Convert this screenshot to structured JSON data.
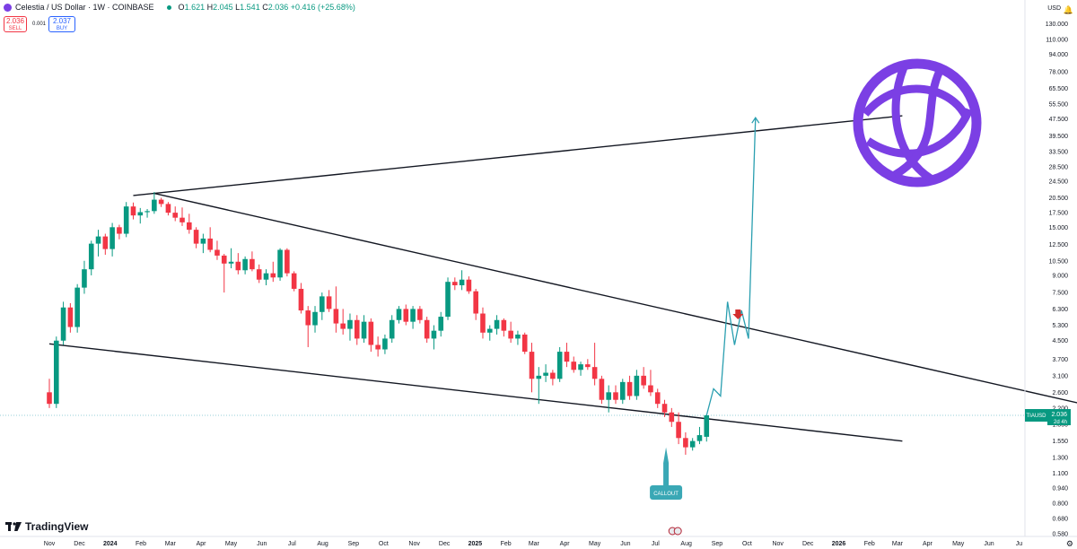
{
  "header": {
    "symbol_name": "Celestia / US Dollar · 1W · COINBASE",
    "ohlc_o_label": "O",
    "ohlc_o": "1.621",
    "ohlc_h_label": "H",
    "ohlc_h": "2.045",
    "ohlc_l_label": "L",
    "ohlc_l": "1.541",
    "ohlc_c_label": "C",
    "ohlc_c": "2.036",
    "change": "+0.416 (+25.68%)"
  },
  "trade": {
    "sell_price": "2.036",
    "sell_label": "SELL",
    "spread": "0.001",
    "buy_price": "2.037",
    "buy_label": "BUY"
  },
  "axis_currency": "USD",
  "brand": "TradingView",
  "price_tag": {
    "ticker": "TIAUSD",
    "price": "2.036",
    "countdown": "2d 4h"
  },
  "colors": {
    "up": "#089981",
    "down": "#f23645",
    "projection": "#2a9fb0",
    "trendline": "#131722",
    "logo": "#7b3fe4",
    "callout": "#3aa8b5"
  },
  "icons": [
    "celestia-logo-icon",
    "down-arrow-marker-icon",
    "bell-icon",
    "gear-icon",
    "us-flag-event-icon"
  ],
  "chart_data": {
    "type": "candlestick",
    "scale": "log",
    "y_ticks": [
      "130.000",
      "110.000",
      "94.000",
      "78.000",
      "65.500",
      "55.500",
      "47.500",
      "39.500",
      "33.500",
      "28.500",
      "24.500",
      "20.500",
      "17.500",
      "15.000",
      "12.500",
      "10.500",
      "9.000",
      "7.500",
      "6.300",
      "5.300",
      "4.500",
      "3.700",
      "3.100",
      "2.600",
      "2.200",
      "1.850",
      "1.550",
      "1.300",
      "1.100",
      "0.940",
      "0.800",
      "0.680",
      "0.580"
    ],
    "y_tick_values": [
      130,
      110,
      94,
      78,
      65.5,
      55.5,
      47.5,
      39.5,
      33.5,
      28.5,
      24.5,
      20.5,
      17.5,
      15,
      12.5,
      10.5,
      9,
      7.5,
      6.3,
      5.3,
      4.5,
      3.7,
      3.1,
      2.6,
      2.2,
      1.85,
      1.55,
      1.3,
      1.1,
      0.94,
      0.8,
      0.68,
      0.58
    ],
    "x_ticks": [
      "Nov",
      "Dec",
      "2024",
      "Feb",
      "Mar",
      "Apr",
      "May",
      "Jun",
      "Jul",
      "Aug",
      "Sep",
      "Oct",
      "Nov",
      "Dec",
      "2025",
      "Feb",
      "Mar",
      "Apr",
      "May",
      "Jun",
      "Jul",
      "Aug",
      "Sep",
      "Oct",
      "Nov",
      "Dec",
      "2026",
      "Feb",
      "Mar",
      "Apr",
      "May",
      "Jun",
      "Ju"
    ],
    "x_tick_weeks": [
      0,
      4.3,
      8.7,
      13.1,
      17.3,
      21.7,
      26,
      30.4,
      34.7,
      39.1,
      43.5,
      47.8,
      52.2,
      56.5,
      60.9,
      65.3,
      69.3,
      73.7,
      78,
      82.4,
      86.7,
      91.1,
      95.5,
      99.8,
      104.2,
      108.5,
      112.9,
      117.3,
      121.3,
      125.6,
      130,
      134.4,
      138.7
    ],
    "candles": [
      [
        2.6,
        3.0,
        2.2,
        2.3
      ],
      [
        2.3,
        4.7,
        2.2,
        4.5
      ],
      [
        4.5,
        6.8,
        4.3,
        6.4
      ],
      [
        6.4,
        6.7,
        4.9,
        5.2
      ],
      [
        5.2,
        8.2,
        4.9,
        7.9
      ],
      [
        7.9,
        10.5,
        7.4,
        9.6
      ],
      [
        9.6,
        13.0,
        9.0,
        12.6
      ],
      [
        12.6,
        14.6,
        11.0,
        13.6
      ],
      [
        13.6,
        14.0,
        11.2,
        11.9
      ],
      [
        11.9,
        15.7,
        11.0,
        15.0
      ],
      [
        15.0,
        15.4,
        13.2,
        14.0
      ],
      [
        14.0,
        19.6,
        13.5,
        18.7
      ],
      [
        18.7,
        19.5,
        16.3,
        17.0
      ],
      [
        17.0,
        18.4,
        15.6,
        17.6
      ],
      [
        17.6,
        18.2,
        16.6,
        17.8
      ],
      [
        17.8,
        21.8,
        17.3,
        20.1
      ],
      [
        20.1,
        20.5,
        18.6,
        19.2
      ],
      [
        19.2,
        19.6,
        17.0,
        17.5
      ],
      [
        17.5,
        18.7,
        16.0,
        16.6
      ],
      [
        16.6,
        18.5,
        15.2,
        15.8
      ],
      [
        15.8,
        17.3,
        14.0,
        14.6
      ],
      [
        14.6,
        15.0,
        12.0,
        12.6
      ],
      [
        12.6,
        14.0,
        11.4,
        13.3
      ],
      [
        13.3,
        15.0,
        11.5,
        11.8
      ],
      [
        11.8,
        13.0,
        10.6,
        11.1
      ],
      [
        11.1,
        11.3,
        7.5,
        10.2
      ],
      [
        10.2,
        12.0,
        9.7,
        10.4
      ],
      [
        10.4,
        11.4,
        9.1,
        9.5
      ],
      [
        9.5,
        11.0,
        9.1,
        10.7
      ],
      [
        10.7,
        11.6,
        9.4,
        9.6
      ],
      [
        9.6,
        10.1,
        8.3,
        8.6
      ],
      [
        8.6,
        9.6,
        8.1,
        9.2
      ],
      [
        9.2,
        10.4,
        8.4,
        8.8
      ],
      [
        8.8,
        12.0,
        8.5,
        11.8
      ],
      [
        11.8,
        12.0,
        8.9,
        9.2
      ],
      [
        9.2,
        9.4,
        7.6,
        7.8
      ],
      [
        7.8,
        8.3,
        6.0,
        6.2
      ],
      [
        6.2,
        6.5,
        4.2,
        5.3
      ],
      [
        5.3,
        6.5,
        4.9,
        6.1
      ],
      [
        6.1,
        7.5,
        5.6,
        7.2
      ],
      [
        7.2,
        7.7,
        6.1,
        6.3
      ],
      [
        6.3,
        8.0,
        4.9,
        5.4
      ],
      [
        5.4,
        6.3,
        4.8,
        5.1
      ],
      [
        5.1,
        6.0,
        4.5,
        5.6
      ],
      [
        5.6,
        5.9,
        4.3,
        4.6
      ],
      [
        4.6,
        5.9,
        4.4,
        5.5
      ],
      [
        5.5,
        5.7,
        4.0,
        4.3
      ],
      [
        4.3,
        4.7,
        3.8,
        4.1
      ],
      [
        4.1,
        4.8,
        3.9,
        4.6
      ],
      [
        4.6,
        5.9,
        4.4,
        5.6
      ],
      [
        5.6,
        6.5,
        5.4,
        6.3
      ],
      [
        6.3,
        6.6,
        5.3,
        5.5
      ],
      [
        5.5,
        6.5,
        5.1,
        6.3
      ],
      [
        6.3,
        6.5,
        5.4,
        5.6
      ],
      [
        5.6,
        5.8,
        4.4,
        4.6
      ],
      [
        4.6,
        5.3,
        4.1,
        5.0
      ],
      [
        5.0,
        6.1,
        4.7,
        5.8
      ],
      [
        5.8,
        8.8,
        5.6,
        8.4
      ],
      [
        8.4,
        8.8,
        7.7,
        8.1
      ],
      [
        8.1,
        9.5,
        7.7,
        8.6
      ],
      [
        8.6,
        8.9,
        7.4,
        7.6
      ],
      [
        7.6,
        7.8,
        5.6,
        6.0
      ],
      [
        6.0,
        6.4,
        4.6,
        4.9
      ],
      [
        4.9,
        5.3,
        4.5,
        5.1
      ],
      [
        5.1,
        5.9,
        4.8,
        5.6
      ],
      [
        5.6,
        5.7,
        4.7,
        5.0
      ],
      [
        5.0,
        5.5,
        4.4,
        4.6
      ],
      [
        4.6,
        5.0,
        4.3,
        4.8
      ],
      [
        4.8,
        4.9,
        3.9,
        4.0
      ],
      [
        4.0,
        4.4,
        2.6,
        3.0
      ],
      [
        3.0,
        3.4,
        2.3,
        3.1
      ],
      [
        3.1,
        3.5,
        2.9,
        3.2
      ],
      [
        3.2,
        3.3,
        2.8,
        3.0
      ],
      [
        3.0,
        4.2,
        2.9,
        4.0
      ],
      [
        4.0,
        4.4,
        3.4,
        3.6
      ],
      [
        3.6,
        3.8,
        3.2,
        3.3
      ],
      [
        3.3,
        3.6,
        3.1,
        3.5
      ],
      [
        3.5,
        3.7,
        3.3,
        3.4
      ],
      [
        3.4,
        4.4,
        2.8,
        3.0
      ],
      [
        3.0,
        3.1,
        2.3,
        2.4
      ],
      [
        2.4,
        2.8,
        2.1,
        2.6
      ],
      [
        2.6,
        2.8,
        2.3,
        2.4
      ],
      [
        2.4,
        3.0,
        2.3,
        2.9
      ],
      [
        2.9,
        3.1,
        2.4,
        2.5
      ],
      [
        2.5,
        3.3,
        2.4,
        3.1
      ],
      [
        3.1,
        3.4,
        2.7,
        2.8
      ],
      [
        2.8,
        3.3,
        2.5,
        2.6
      ],
      [
        2.6,
        2.7,
        2.2,
        2.3
      ],
      [
        2.3,
        2.4,
        2.0,
        2.1
      ],
      [
        2.1,
        2.2,
        1.8,
        1.9
      ],
      [
        1.9,
        2.1,
        1.5,
        1.6
      ],
      [
        1.6,
        1.7,
        1.34,
        1.45
      ],
      [
        1.45,
        1.6,
        1.4,
        1.55
      ],
      [
        1.55,
        1.8,
        1.5,
        1.65
      ],
      [
        1.621,
        2.045,
        1.541,
        2.036
      ]
    ],
    "projection": [
      [
        94,
        2.036
      ],
      [
        95,
        2.7
      ],
      [
        96,
        2.5
      ],
      [
        97,
        6.8
      ],
      [
        98,
        4.3
      ],
      [
        99,
        6.2
      ],
      [
        100,
        4.6
      ],
      [
        101,
        48
      ]
    ],
    "trendlines": [
      {
        "name": "resistance-upper",
        "points": [
          [
            12,
            21
          ],
          [
            122,
            49
          ]
        ]
      },
      {
        "name": "descending-resistance",
        "points": [
          [
            15,
            21.5
          ],
          [
            156,
            2.0
          ]
        ]
      },
      {
        "name": "lower-support",
        "points": [
          [
            0,
            4.35
          ],
          [
            122,
            1.55
          ]
        ]
      }
    ],
    "callout_label": "CALLOUT",
    "marker": {
      "week": 98.5,
      "price": 5.75
    }
  }
}
